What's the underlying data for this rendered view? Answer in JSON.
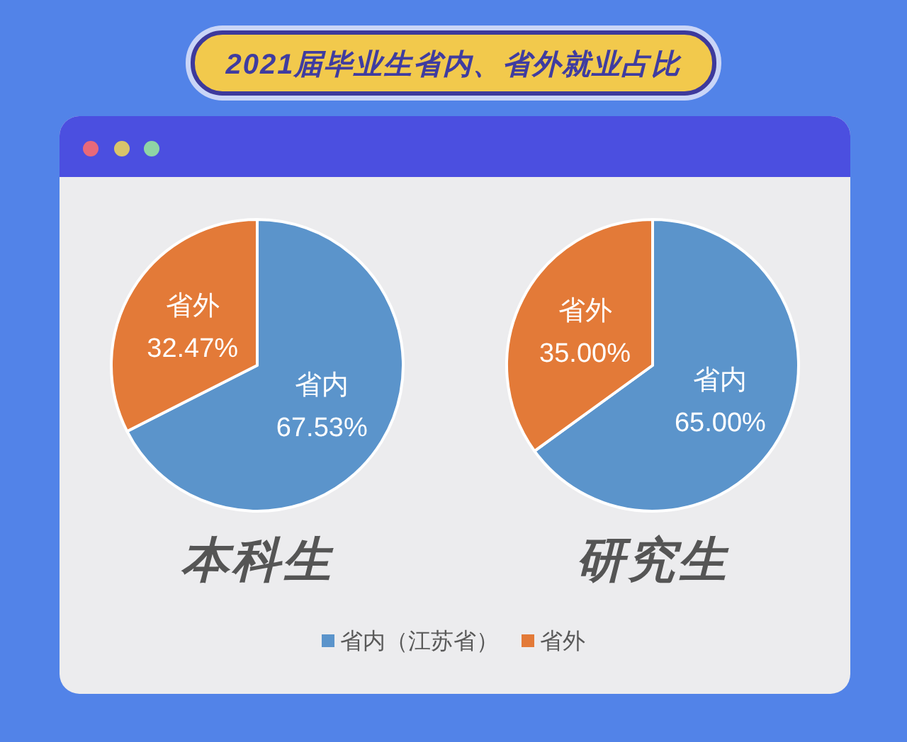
{
  "chart_data": {
    "type": "pie",
    "title": "2021届毕业生省内、省外就业占比",
    "categories": [
      "省内（江苏省）",
      "省外"
    ],
    "colors": [
      "#5b94cb",
      "#e37a38"
    ],
    "series": [
      {
        "name": "本科生",
        "values": [
          67.53,
          32.47
        ],
        "value_labels": [
          "省内\n67.53%",
          "省外\n32.47%"
        ]
      },
      {
        "name": "研究生",
        "values": [
          65.0,
          35.0
        ],
        "value_labels": [
          "省内\n65.00%",
          "省外\n35.00%"
        ]
      }
    ],
    "legend": "bottom"
  }
}
